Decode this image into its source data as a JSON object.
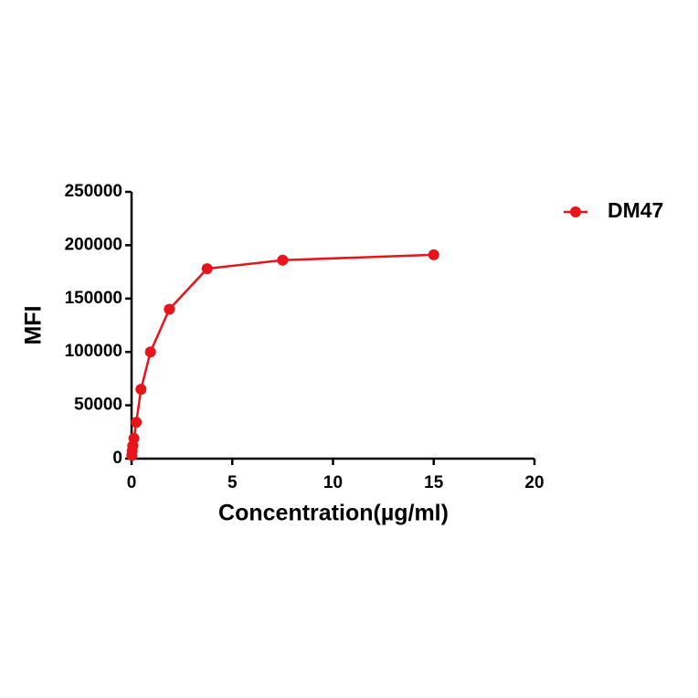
{
  "chart_data": {
    "type": "line",
    "x_label": "Concentration(µg/ml)",
    "y_label": "MFI",
    "x": [
      0.0146,
      0.0293,
      0.0586,
      0.117,
      0.234,
      0.469,
      0.9375,
      1.875,
      3.75,
      7.5,
      15
    ],
    "series": [
      {
        "name": "DM47",
        "color": "#e8141b",
        "values": [
          3000,
          7000,
          12000,
          19000,
          34000,
          65000,
          100000,
          140000,
          178000,
          186000,
          191000
        ]
      }
    ],
    "xlim": [
      0,
      20
    ],
    "xticks": [
      0,
      5,
      10,
      15,
      20
    ],
    "ylim": [
      0,
      250000
    ],
    "yticks": [
      0,
      50000,
      100000,
      150000,
      200000,
      250000
    ],
    "legend": "right"
  }
}
